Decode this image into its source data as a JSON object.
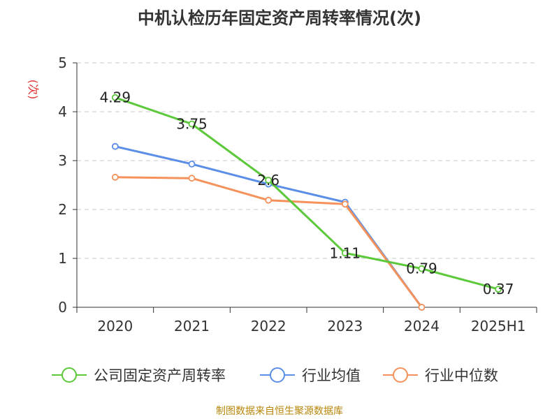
{
  "chart_data": {
    "type": "line",
    "title": "中机认检历年固定资产周转率情况(次)",
    "ylabel": "(次)",
    "xlabel": "",
    "categories": [
      "2020",
      "2021",
      "2022",
      "2023",
      "2024",
      "2025H1"
    ],
    "ylim": [
      0,
      5
    ],
    "yticks": [
      0,
      1,
      2,
      3,
      4,
      5
    ],
    "grid": true,
    "legend_position": "bottom",
    "series": [
      {
        "name": "公司固定资产周转率",
        "color": "#5cc93a",
        "values": [
          4.29,
          3.75,
          2.6,
          1.11,
          0.79,
          0.37
        ],
        "labels": true
      },
      {
        "name": "行业均值",
        "color": "#5b8ee6",
        "values": [
          3.29,
          2.93,
          2.52,
          2.15,
          0.0,
          null
        ],
        "labels": false
      },
      {
        "name": "行业中位数",
        "color": "#f5915a",
        "values": [
          2.66,
          2.64,
          2.19,
          2.11,
          0.0,
          null
        ],
        "labels": false
      }
    ]
  },
  "source": "制图数据来自恒生聚源数据库"
}
